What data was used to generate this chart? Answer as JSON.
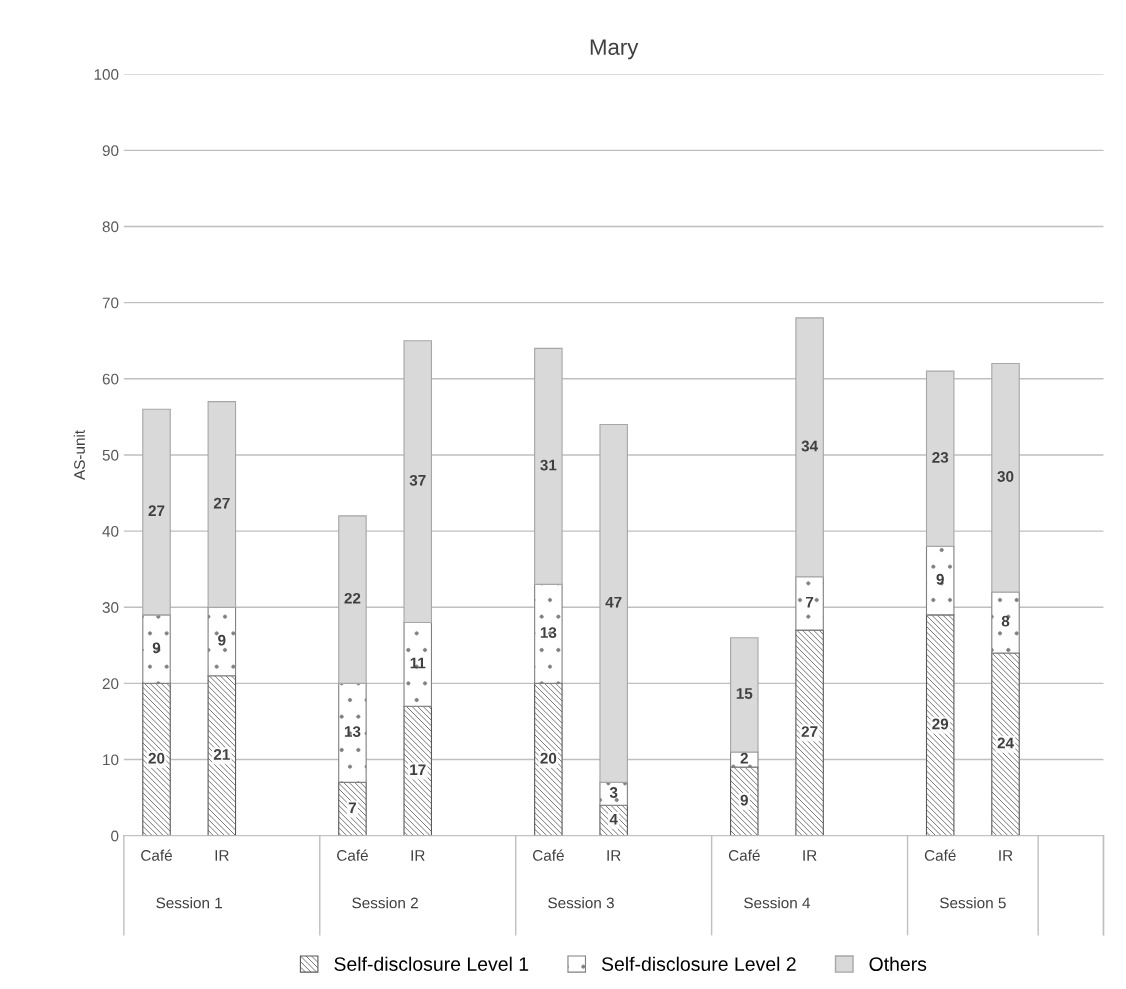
{
  "chart_data": {
    "type": "bar",
    "title": "Mary",
    "ylabel": "AS-unit",
    "stacked": true,
    "data_labels": true,
    "grid": "y",
    "legend": "bottom",
    "categories": [
      "Café",
      "IR",
      null,
      "Café",
      "IR",
      null,
      "Café",
      "IR",
      null,
      "Café",
      "IR",
      null,
      "Café",
      "IR",
      null
    ],
    "series": [
      {
        "name": "Self-disclosure Level 1",
        "color": "#595959",
        "values": [
          20,
          21,
          null,
          7,
          17,
          null,
          20,
          4,
          null,
          9,
          27,
          null,
          29,
          24,
          null
        ]
      },
      {
        "name": "Self-disclosure Level 2",
        "color": "#808080",
        "values": [
          9,
          9,
          null,
          13,
          11,
          null,
          13,
          3,
          null,
          2,
          7,
          null,
          9,
          8,
          null
        ]
      },
      {
        "name": "Others",
        "color": "#d9d9d9",
        "values": [
          27,
          27,
          null,
          22,
          37,
          null,
          31,
          47,
          null,
          15,
          34,
          null,
          23,
          30,
          null
        ]
      }
    ],
    "annotations": [
      "Session 1",
      "Session 2",
      "Session 3",
      "Session 4",
      "Session 5"
    ],
    "ylim": [
      0,
      100
    ],
    "yticks": [
      0,
      10,
      20,
      30,
      40,
      50,
      60,
      70,
      80,
      90,
      100
    ]
  }
}
